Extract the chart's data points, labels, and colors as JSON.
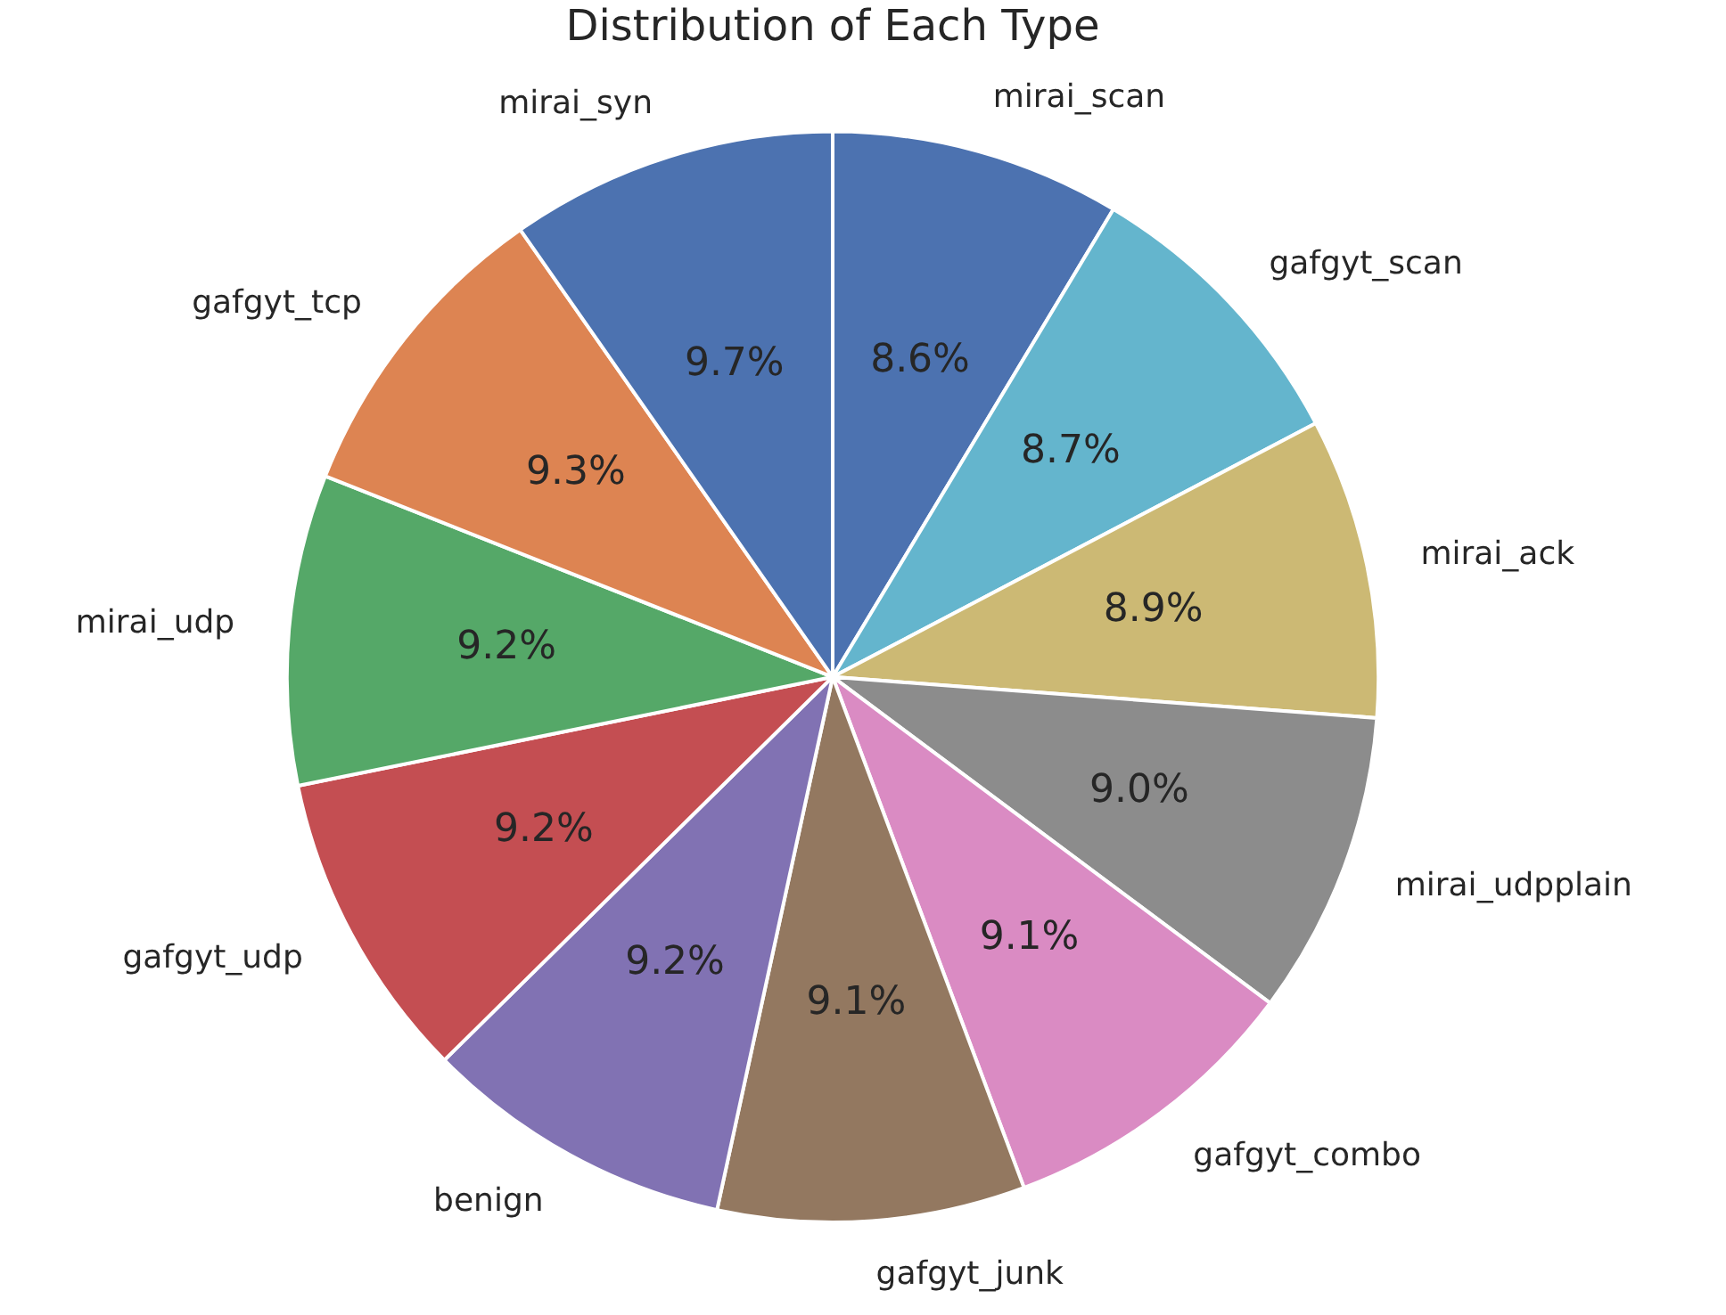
{
  "chart_data": {
    "type": "pie",
    "title": "Distribution of Each Type",
    "categories": [
      "mirai_scan",
      "gafgyt_scan",
      "mirai_ack",
      "mirai_udpplain",
      "gafgyt_combo",
      "gafgyt_junk",
      "benign",
      "gafgyt_udp",
      "mirai_udp",
      "gafgyt_tcp",
      "mirai_syn"
    ],
    "values": [
      8.6,
      8.7,
      8.9,
      9.0,
      9.1,
      9.1,
      9.2,
      9.2,
      9.2,
      9.3,
      9.7
    ],
    "value_labels": [
      "8.6%",
      "8.7%",
      "8.9%",
      "9.0%",
      "9.1%",
      "9.1%",
      "9.2%",
      "9.2%",
      "9.2%",
      "9.3%",
      "9.7%"
    ],
    "colors": [
      "#4c72b0",
      "#64b5cd",
      "#ccb974",
      "#8c8c8c",
      "#da8bc3",
      "#937860",
      "#8172b3",
      "#c44e52",
      "#55a868",
      "#dd8452",
      "#4c72b0"
    ]
  }
}
